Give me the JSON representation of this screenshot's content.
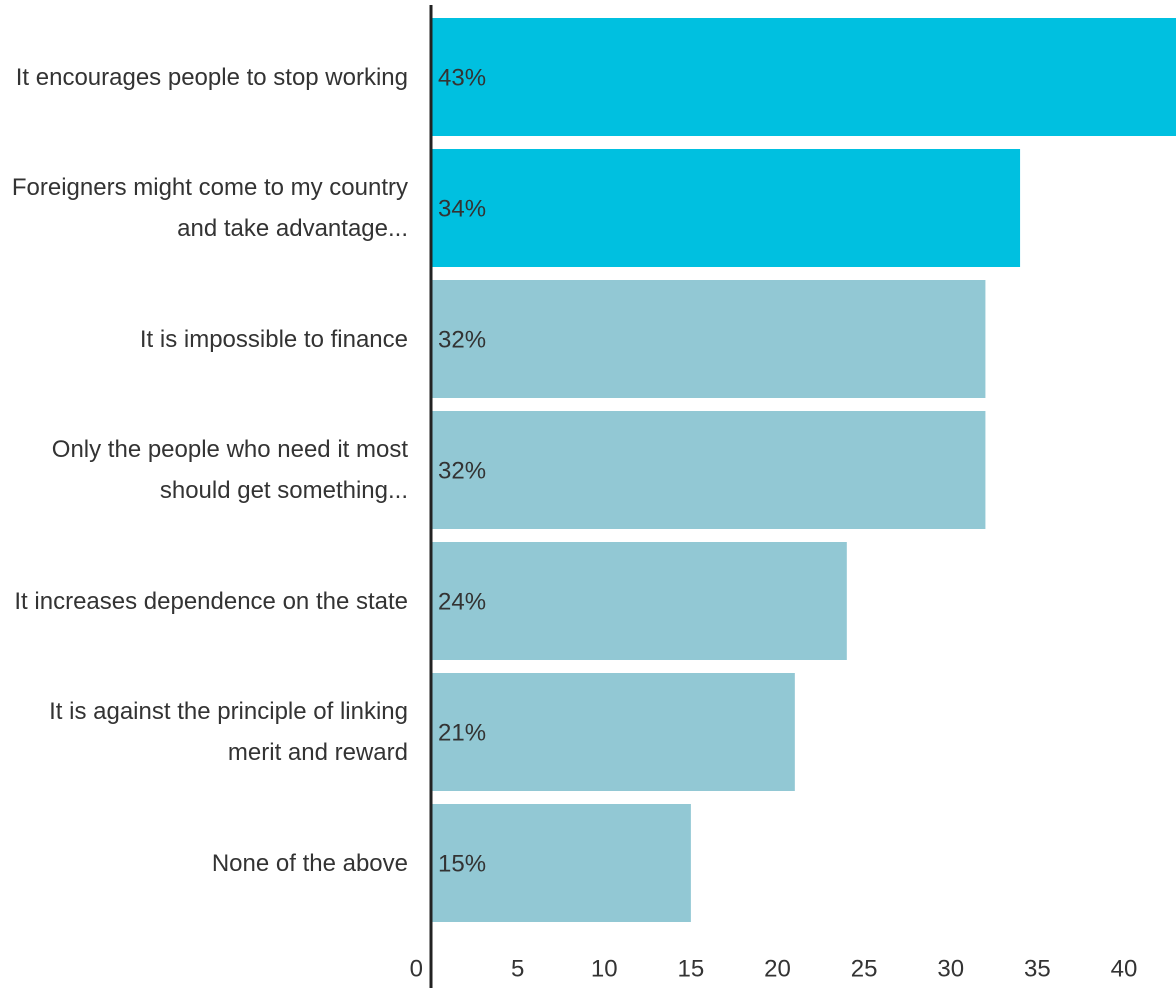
{
  "chart_data": {
    "type": "bar",
    "orientation": "horizontal",
    "categories": [
      "It encourages people to stop working",
      "Foreigners might come to my country and take advantage...",
      "It is impossible to finance",
      "Only the people who need it most should get something...",
      "It increases dependence on the state",
      "It is against the principle of linking merit and reward",
      "None of the above"
    ],
    "values": [
      43,
      34,
      32,
      32,
      24,
      21,
      15
    ],
    "value_labels": [
      "43%",
      "34%",
      "32%",
      "32%",
      "24%",
      "21%",
      "15%"
    ],
    "colors": [
      "#00c0e0",
      "#00c0e0",
      "#92c8d4",
      "#92c8d4",
      "#92c8d4",
      "#92c8d4",
      "#92c8d4"
    ],
    "xlim": [
      0,
      43
    ],
    "xticks": [
      0,
      5,
      10,
      15,
      20,
      25,
      30,
      35,
      40
    ]
  }
}
